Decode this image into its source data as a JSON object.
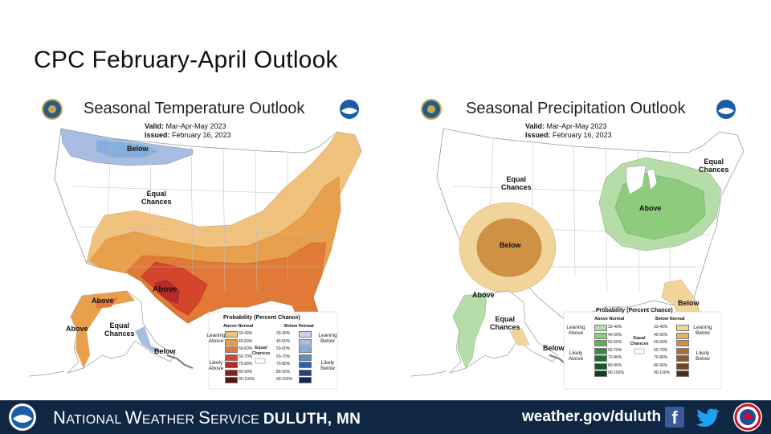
{
  "slide": {
    "title": "CPC February-April  Outlook"
  },
  "temperature": {
    "title": "Seasonal Temperature Outlook",
    "valid_label": "Valid:",
    "valid": "Mar-Apr-May 2023",
    "issued_label": "Issued:",
    "issued": "February 16, 2023",
    "labels": {
      "below_north": "Below",
      "equal_line1": "Equal",
      "equal_line2": "Chances",
      "above_south": "Above",
      "ak_above1": "Above",
      "ak_above2": "Above",
      "ak_equal1": "Equal",
      "ak_equal2": "Chances",
      "ak_below": "Below"
    },
    "legend": {
      "title": "Probability (Percent Chance)",
      "left_header": "Above Normal",
      "right_header": "Below Normal",
      "leaning_left": "Leaning Above",
      "likely_left": "Likely Above",
      "leaning_right": "Leaning Below",
      "likely_right": "Likely Below",
      "equal": "Equal Chances",
      "ranges": [
        "33-40%",
        "40-50%",
        "50-60%",
        "60-70%",
        "70-80%",
        "80-90%",
        "90-100%"
      ],
      "left_colors": [
        "#f1c27d",
        "#e8a04d",
        "#e07a36",
        "#d4452c",
        "#b52a2a",
        "#8a1f25",
        "#5a1410"
      ],
      "right_colors": [
        "#c9d3ea",
        "#a9bde0",
        "#86aedd",
        "#5b8fca",
        "#2f5fa7",
        "#24437f",
        "#1b2457"
      ]
    }
  },
  "precipitation": {
    "title": "Seasonal Precipitation Outlook",
    "valid_label": "Valid:",
    "valid": "Mar-Apr-May 2023",
    "issued_label": "Issued:",
    "issued": "February 16, 2023",
    "labels": {
      "equal_line1": "Equal",
      "equal_line2": "Chances",
      "equal_ne1": "Equal",
      "equal_ne2": "Chances",
      "above_east": "Above",
      "below_sw": "Below",
      "below_fl": "Below",
      "ak_above": "Above",
      "ak_equal1": "Equal",
      "ak_equal2": "Chances",
      "ak_below": "Below"
    },
    "legend": {
      "title": "Probability (Percent Chance)",
      "left_header": "Above Normal",
      "right_header": "Below Normal",
      "leaning_left": "Leaning Above",
      "likely_left": "Likely Above",
      "leaning_right": "Leaning Below",
      "likely_right": "Likely Below",
      "equal": "Equal Chances",
      "ranges": [
        "33-40%",
        "40-50%",
        "50-60%",
        "60-70%",
        "70-80%",
        "80-90%",
        "90-100%"
      ],
      "left_colors": [
        "#b5dca9",
        "#8fcb7d",
        "#5fae57",
        "#3a8c43",
        "#21703a",
        "#155a2c",
        "#0c3f1c"
      ],
      "right_colors": [
        "#f1d49a",
        "#e3b56a",
        "#cf9245",
        "#b0703a",
        "#8e5a2e",
        "#6e4623",
        "#4b2f16"
      ]
    }
  },
  "footer": {
    "nws_name_first_cap": "N",
    "nws_name_rest1": "ATIONAL ",
    "nws_name_cap2": "W",
    "nws_name_rest2": "EATHER ",
    "nws_name_cap3": "S",
    "nws_name_rest3": "ERVICE ",
    "city": "DULUTH, MN",
    "website": "weather.gov/duluth",
    "facebook_icon": "facebook-icon",
    "twitter_icon": "twitter-icon"
  }
}
